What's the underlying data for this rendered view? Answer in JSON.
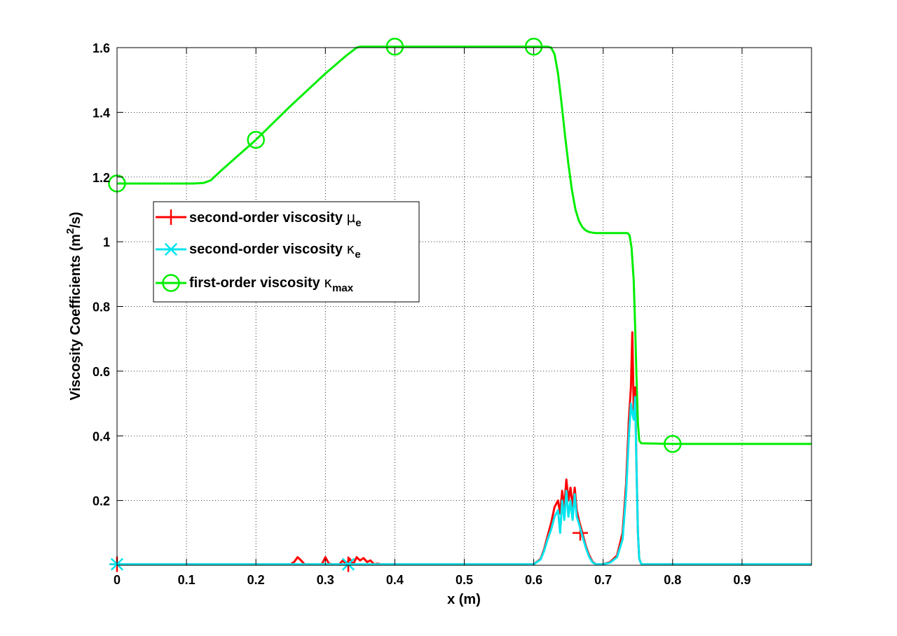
{
  "chart_data": {
    "type": "line",
    "xlabel": "x (m)",
    "ylabel": "Viscosity Coefficients (m",
    "ylabel_sup": "2",
    "ylabel_tail": "/s)",
    "xlim": [
      0,
      1.0
    ],
    "ylim": [
      0,
      1.6
    ],
    "x_ticks": [
      0,
      0.1,
      0.2,
      0.3,
      0.4,
      0.5,
      0.6,
      0.7,
      0.8,
      0.9
    ],
    "x_tick_labels": [
      "0",
      "0.1",
      "0.2",
      "0.3",
      "0.4",
      "0.5",
      "0.6",
      "0.7",
      "0.8",
      "0.9"
    ],
    "y_ticks": [
      0.2,
      0.4,
      0.6,
      0.8,
      1.0,
      1.2,
      1.4,
      1.6
    ],
    "y_tick_labels": [
      "0.2",
      "0.4",
      "0.6",
      "0.8",
      "1",
      "1.2",
      "1.4",
      "1.6"
    ],
    "grid": true,
    "legend_position": "upper-left",
    "series": [
      {
        "name": "second-order viscosity μe",
        "legend_main": "second-order viscosity ",
        "legend_symbol": "μ",
        "legend_sub": "e",
        "color": "#ff0000",
        "marker": "plus",
        "markers_x": [
          0,
          0.333,
          0.667
        ],
        "markers_y": [
          0.003,
          0.003,
          0.1
        ],
        "x": [
          0,
          0.25,
          0.255,
          0.26,
          0.265,
          0.27,
          0.275,
          0.295,
          0.3,
          0.305,
          0.31,
          0.32,
          0.325,
          0.33,
          0.335,
          0.34,
          0.345,
          0.35,
          0.355,
          0.36,
          0.365,
          0.37,
          0.375,
          0.38,
          0.6,
          0.61,
          0.615,
          0.62,
          0.625,
          0.63,
          0.635,
          0.638,
          0.641,
          0.644,
          0.647,
          0.65,
          0.653,
          0.656,
          0.659,
          0.662,
          0.665,
          0.67,
          0.675,
          0.68,
          0.685,
          0.69,
          0.7,
          0.71,
          0.72,
          0.728,
          0.733,
          0.737,
          0.74,
          0.742,
          0.744,
          0.746,
          0.748,
          0.75,
          0.752,
          0.755,
          0.76,
          1.0
        ],
        "y": [
          0.003,
          0.003,
          0.01,
          0.025,
          0.015,
          0.003,
          0.003,
          0.003,
          0.025,
          0.005,
          0.003,
          0.003,
          0.015,
          0.003,
          0.02,
          0.003,
          0.025,
          0.015,
          0.022,
          0.01,
          0.015,
          0.003,
          0.005,
          0.003,
          0.003,
          0.02,
          0.05,
          0.09,
          0.13,
          0.18,
          0.2,
          0.16,
          0.23,
          0.18,
          0.265,
          0.2,
          0.24,
          0.18,
          0.24,
          0.17,
          0.14,
          0.1,
          0.06,
          0.03,
          0.01,
          0.003,
          0.003,
          0.01,
          0.03,
          0.1,
          0.25,
          0.45,
          0.55,
          0.72,
          0.48,
          0.55,
          0.3,
          0.1,
          0.02,
          0.003,
          0.003,
          0.003
        ]
      },
      {
        "name": "second-order viscosity κe",
        "legend_main": "second-order viscosity ",
        "legend_symbol": "κ",
        "legend_sub": "e",
        "color": "#00e5ee",
        "marker": "star",
        "markers_x": [
          0,
          0.333
        ],
        "markers_y": [
          0.003,
          0.003
        ],
        "x": [
          0,
          0.6,
          0.61,
          0.615,
          0.62,
          0.625,
          0.63,
          0.635,
          0.638,
          0.641,
          0.644,
          0.647,
          0.65,
          0.653,
          0.656,
          0.659,
          0.662,
          0.665,
          0.67,
          0.675,
          0.68,
          0.685,
          0.69,
          0.7,
          0.71,
          0.72,
          0.728,
          0.733,
          0.737,
          0.74,
          0.742,
          0.744,
          0.746,
          0.748,
          0.75,
          0.752,
          0.755,
          0.76,
          1.0
        ],
        "y": [
          0.003,
          0.003,
          0.018,
          0.045,
          0.08,
          0.11,
          0.15,
          0.17,
          0.1,
          0.2,
          0.14,
          0.23,
          0.15,
          0.2,
          0.14,
          0.22,
          0.15,
          0.13,
          0.09,
          0.055,
          0.025,
          0.008,
          0.003,
          0.003,
          0.008,
          0.025,
          0.08,
          0.22,
          0.4,
          0.5,
          0.47,
          0.45,
          0.52,
          0.3,
          0.1,
          0.02,
          0.003,
          0.003,
          0.003
        ]
      },
      {
        "name": "first-order viscosity κmax",
        "legend_main": "first-order viscosity ",
        "legend_symbol": "κ",
        "legend_sub": "max",
        "color": "#00ee00",
        "marker": "circle",
        "markers_x": [
          0,
          0.2,
          0.4,
          0.6,
          0.8
        ],
        "markers_y": [
          1.18,
          1.315,
          1.603,
          1.603,
          0.375
        ],
        "x": [
          0,
          0.11,
          0.125,
          0.135,
          0.15,
          0.2,
          0.25,
          0.3,
          0.33,
          0.345,
          0.35,
          0.6,
          0.62,
          0.625,
          0.63,
          0.635,
          0.64,
          0.645,
          0.65,
          0.655,
          0.66,
          0.665,
          0.67,
          0.675,
          0.68,
          0.685,
          0.69,
          0.7,
          0.72,
          0.735,
          0.738,
          0.741,
          0.744,
          0.746,
          0.748,
          0.75,
          0.752,
          0.755,
          0.8,
          1.0
        ],
        "y": [
          1.18,
          1.18,
          1.182,
          1.19,
          1.22,
          1.315,
          1.42,
          1.52,
          1.575,
          1.6,
          1.603,
          1.603,
          1.603,
          1.6,
          1.58,
          1.52,
          1.43,
          1.33,
          1.24,
          1.16,
          1.1,
          1.065,
          1.045,
          1.035,
          1.03,
          1.028,
          1.027,
          1.027,
          1.027,
          1.027,
          1.02,
          0.98,
          0.88,
          0.74,
          0.58,
          0.44,
          0.385,
          0.377,
          0.375,
          0.375
        ]
      }
    ]
  }
}
